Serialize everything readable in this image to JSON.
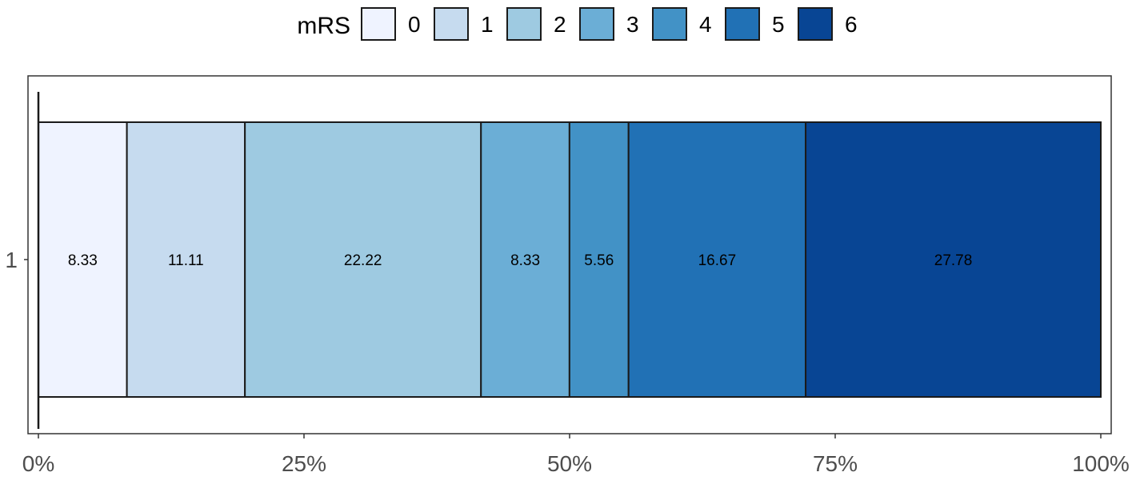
{
  "chart_data": {
    "type": "bar",
    "orientation": "horizontal",
    "stacked": "percent",
    "categories": [
      "1"
    ],
    "legend": {
      "title": "mRS",
      "placement": "top",
      "entries": [
        "0",
        "1",
        "2",
        "3",
        "4",
        "5",
        "6"
      ]
    },
    "series": [
      {
        "name": "0",
        "values": [
          8.33
        ],
        "label": "8.33",
        "color": "#EFF3FF"
      },
      {
        "name": "1",
        "values": [
          11.11
        ],
        "label": "11.11",
        "color": "#C6DBEF"
      },
      {
        "name": "2",
        "values": [
          22.22
        ],
        "label": "22.22",
        "color": "#9ECAE1"
      },
      {
        "name": "3",
        "values": [
          8.33
        ],
        "label": "8.33",
        "color": "#6BAED6"
      },
      {
        "name": "4",
        "values": [
          5.56
        ],
        "label": "5.56",
        "color": "#4292C6"
      },
      {
        "name": "5",
        "values": [
          16.67
        ],
        "label": "16.67",
        "color": "#2171B5"
      },
      {
        "name": "6",
        "values": [
          27.78
        ],
        "label": "27.78",
        "color": "#084594"
      }
    ],
    "x_ticks": [
      "0%",
      "25%",
      "50%",
      "75%",
      "100%"
    ],
    "xlim": [
      0,
      100
    ],
    "xlabel": "",
    "ylabel": "",
    "grid": false
  }
}
